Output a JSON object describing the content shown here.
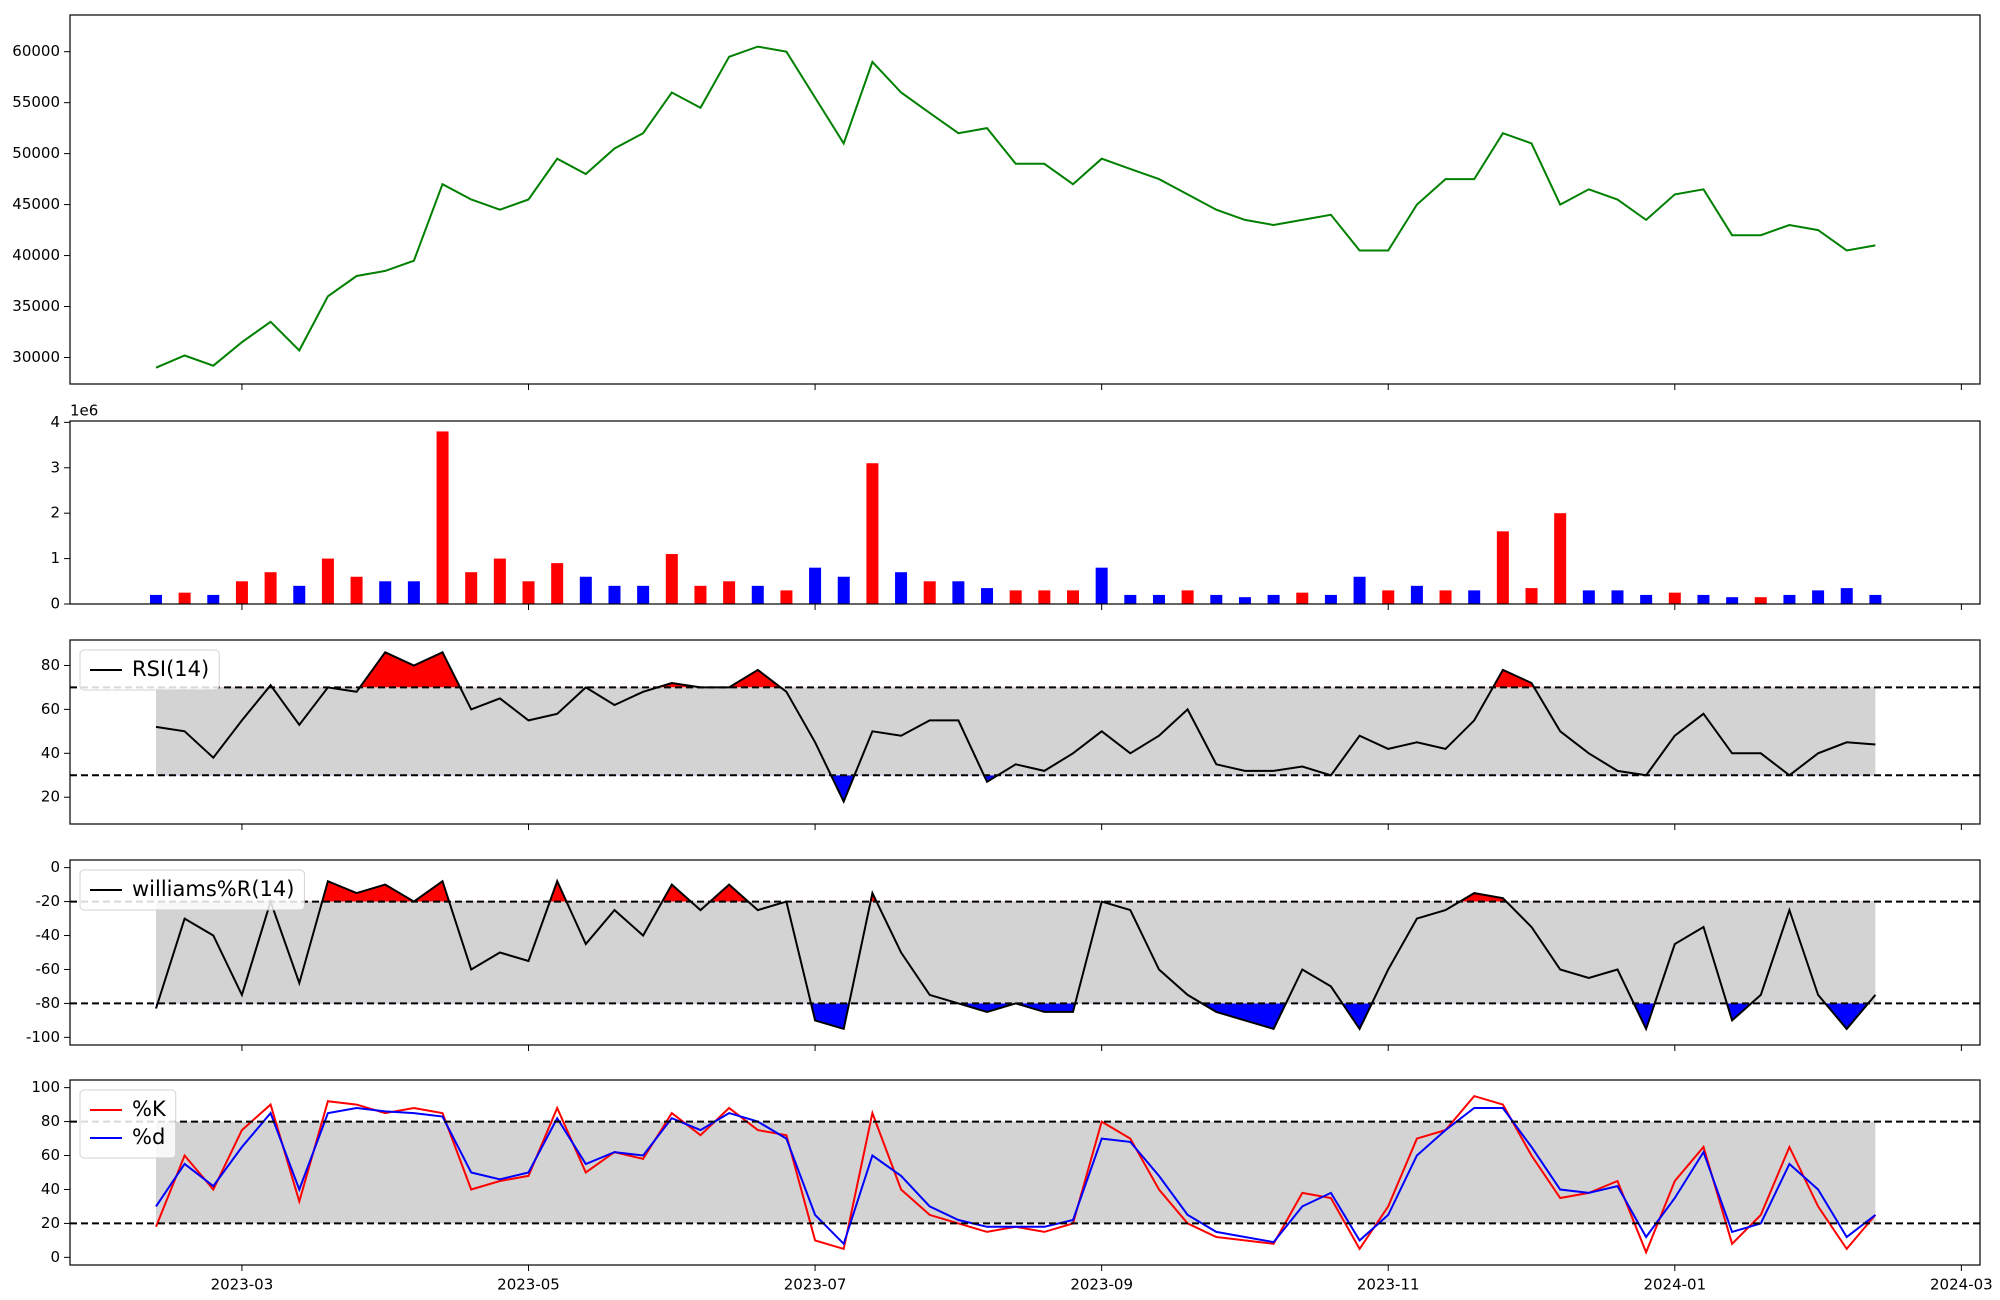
{
  "chart_data": [
    {
      "type": "line",
      "ylim": [
        27400,
        63600
      ],
      "yticks": [
        30000,
        35000,
        40000,
        45000,
        50000,
        55000,
        60000
      ],
      "series": [
        {
          "color": "#008000",
          "values": [
            29000,
            30200,
            29200,
            31500,
            33500,
            30700,
            36000,
            38000,
            38500,
            39500,
            47000,
            45500,
            44500,
            45500,
            49500,
            48000,
            50500,
            52000,
            56000,
            54500,
            59500,
            60500,
            60000,
            55500,
            51000,
            59000,
            56000,
            54000,
            52000,
            52500,
            49000,
            49000,
            47000,
            49500,
            48500,
            47500,
            46000,
            44500,
            43500,
            43000,
            43500,
            44000,
            40500,
            40500,
            45000,
            47500,
            47500,
            52000,
            51000,
            45000,
            46500,
            45500,
            43500,
            46000,
            46500,
            42000,
            42000,
            43000,
            42500,
            40500,
            41000
          ]
        }
      ]
    },
    {
      "type": "bar",
      "ylim": [
        0,
        4.03
      ],
      "yticks": [
        0,
        1,
        2,
        3,
        4
      ],
      "y_offset_label": "1e6",
      "values": [
        0.2,
        0.25,
        0.2,
        0.5,
        0.7,
        0.4,
        1.0,
        0.6,
        0.5,
        0.5,
        3.8,
        0.7,
        1.0,
        0.5,
        0.9,
        0.6,
        0.4,
        0.4,
        1.1,
        0.4,
        0.5,
        0.4,
        0.3,
        0.8,
        0.6,
        3.1,
        0.7,
        0.5,
        0.5,
        0.35,
        0.3,
        0.3,
        0.3,
        0.8,
        0.2,
        0.2,
        0.3,
        0.2,
        0.15,
        0.2,
        0.25,
        0.2,
        0.6,
        0.3,
        0.4,
        0.3,
        0.3,
        1.6,
        0.35,
        2.0,
        0.3,
        0.3,
        0.2,
        0.25,
        0.2,
        0.15,
        0.15,
        0.2,
        0.3,
        0.35,
        0.2
      ],
      "colors": [
        "blue",
        "red",
        "blue",
        "red",
        "red",
        "blue",
        "red",
        "red",
        "blue",
        "blue",
        "red",
        "red",
        "red",
        "red",
        "red",
        "blue",
        "blue",
        "blue",
        "red",
        "red",
        "red",
        "blue",
        "red",
        "blue",
        "blue",
        "red",
        "blue",
        "red",
        "blue",
        "blue",
        "red",
        "red",
        "red",
        "blue",
        "blue",
        "blue",
        "red",
        "blue",
        "blue",
        "blue",
        "red",
        "blue",
        "blue",
        "red",
        "blue",
        "red",
        "blue",
        "red",
        "red",
        "red",
        "blue",
        "blue",
        "blue",
        "red",
        "blue",
        "blue",
        "red",
        "blue",
        "blue",
        "blue",
        "blue"
      ]
    },
    {
      "type": "line",
      "ylim": [
        7.8,
        91.6
      ],
      "yticks": [
        20,
        40,
        60,
        80
      ],
      "upper": 70,
      "lower": 30,
      "band_color": "#d3d3d3",
      "legend": "upper left",
      "series": [
        {
          "name": "RSI(14)",
          "color": "#000000",
          "above_color": "red",
          "below_color": "blue",
          "values": [
            52,
            50,
            38,
            55,
            71,
            53,
            70,
            68,
            86,
            80,
            86,
            60,
            65,
            55,
            58,
            70,
            62,
            68,
            72,
            70,
            70,
            78,
            68,
            45,
            18,
            50,
            48,
            55,
            55,
            27,
            35,
            32,
            40,
            50,
            40,
            48,
            60,
            35,
            32,
            32,
            34,
            30,
            48,
            42,
            45,
            42,
            55,
            78,
            72,
            50,
            40,
            32,
            30,
            48,
            58,
            40,
            40,
            30,
            40,
            45,
            44
          ]
        }
      ]
    },
    {
      "type": "line",
      "ylim": [
        -104.5,
        4.5
      ],
      "yticks": [
        -100,
        -80,
        -60,
        -40,
        -20,
        0
      ],
      "upper": -20,
      "lower": -80,
      "band_color": "#d3d3d3",
      "legend": "upper left",
      "series": [
        {
          "name": "williams%R(14)",
          "color": "#000000",
          "above_color": "red",
          "below_color": "blue",
          "values": [
            -83,
            -30,
            -40,
            -75,
            -20,
            -68,
            -8,
            -15,
            -10,
            -20,
            -8,
            -60,
            -50,
            -55,
            -8,
            -45,
            -25,
            -40,
            -10,
            -25,
            -10,
            -25,
            -20,
            -90,
            -95,
            -15,
            -50,
            -75,
            -80,
            -85,
            -80,
            -85,
            -85,
            -20,
            -25,
            -60,
            -75,
            -85,
            -90,
            -95,
            -60,
            -70,
            -95,
            -60,
            -30,
            -25,
            -15,
            -18,
            -35,
            -60,
            -65,
            -60,
            -95,
            -45,
            -35,
            -90,
            -75,
            -25,
            -75,
            -95,
            -75
          ]
        }
      ]
    },
    {
      "type": "line",
      "ylim": [
        -4.5,
        104.5
      ],
      "yticks": [
        0,
        20,
        40,
        60,
        80,
        100
      ],
      "upper": 80,
      "lower": 20,
      "band_color": "#d3d3d3",
      "legend": "upper left",
      "xlim": [
        -1.2,
        12.13
      ],
      "xticks": [
        {
          "value": 0,
          "label": "2023-03"
        },
        {
          "value": 2,
          "label": "2023-05"
        },
        {
          "value": 4,
          "label": "2023-07"
        },
        {
          "value": 6,
          "label": "2023-09"
        },
        {
          "value": 8,
          "label": "2023-11"
        },
        {
          "value": 10,
          "label": "2024-01"
        },
        {
          "value": 12,
          "label": "2024-03"
        }
      ],
      "x": [
        -0.6,
        -0.4,
        -0.2,
        0,
        0.2,
        0.4,
        0.6,
        0.8,
        1,
        1.2,
        1.4,
        1.6,
        1.8,
        2,
        2.2,
        2.4,
        2.6,
        2.8,
        3,
        3.2,
        3.4,
        3.6,
        3.8,
        4,
        4.2,
        4.4,
        4.6,
        4.8,
        5,
        5.2,
        5.4,
        5.6,
        5.8,
        6,
        6.2,
        6.4,
        6.6,
        6.8,
        7,
        7.2,
        7.4,
        7.6,
        7.8,
        8,
        8.2,
        8.4,
        8.6,
        8.8,
        9,
        9.2,
        9.4,
        9.6,
        9.8,
        10,
        10.2,
        10.4,
        10.6,
        10.8,
        11,
        11.2,
        11.4
      ],
      "series": [
        {
          "name": "%K",
          "color": "#ff0000",
          "values": [
            18,
            60,
            40,
            75,
            90,
            33,
            92,
            90,
            85,
            88,
            85,
            40,
            45,
            48,
            88,
            50,
            62,
            58,
            85,
            72,
            88,
            75,
            72,
            10,
            5,
            85,
            40,
            25,
            20,
            15,
            18,
            15,
            20,
            80,
            70,
            40,
            20,
            12,
            10,
            8,
            38,
            35,
            5,
            30,
            70,
            75,
            95,
            90,
            60,
            35,
            38,
            45,
            3,
            45,
            65,
            8,
            25,
            65,
            30,
            5,
            25
          ]
        },
        {
          "name": "%d",
          "color": "#0000ff",
          "values": [
            30,
            55,
            42,
            65,
            85,
            40,
            85,
            88,
            86,
            85,
            83,
            50,
            46,
            50,
            82,
            55,
            62,
            60,
            82,
            75,
            85,
            80,
            70,
            25,
            8,
            60,
            48,
            30,
            22,
            18,
            18,
            18,
            22,
            70,
            68,
            48,
            25,
            15,
            12,
            9,
            30,
            38,
            10,
            25,
            60,
            75,
            88,
            88,
            65,
            40,
            38,
            42,
            12,
            35,
            62,
            15,
            20,
            55,
            40,
            12,
            25
          ]
        }
      ]
    }
  ]
}
